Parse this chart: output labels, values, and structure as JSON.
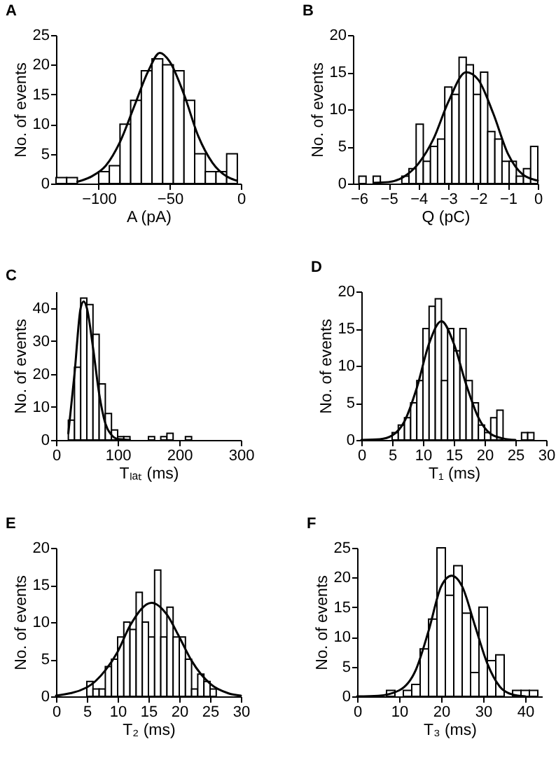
{
  "chart_data": [
    {
      "type": "histogram",
      "title": "A",
      "xlabel": "A (pA)",
      "ylabel": "No. of events",
      "xlim": [
        -130,
        0
      ],
      "xticks": [
        -100,
        -50,
        0
      ],
      "ylim": [
        0,
        25
      ],
      "yticks": [
        0,
        5,
        10,
        15,
        20,
        25
      ],
      "series": [
        {
          "color": "#ffffff",
          "bins": [
            -130,
            -122.5,
            -115,
            -107.5,
            -100,
            -92.5,
            -85,
            -77.5,
            -70,
            -62.5,
            -55,
            -47.5,
            -40,
            -32.5,
            -25,
            -17.5,
            -10,
            -2.5
          ],
          "values": [
            1,
            1,
            0,
            0,
            2,
            3,
            10,
            14,
            19,
            21,
            20,
            19,
            14,
            5,
            2,
            2,
            5
          ]
        },
        {
          "type": "line",
          "color": "#000000",
          "x": [
            -115,
            -105,
            -95,
            -85,
            -75,
            -65,
            -57,
            -50,
            -40,
            -30,
            -20,
            -10,
            -3
          ],
          "values": [
            0.3,
            1.2,
            3,
            7,
            13,
            19,
            22,
            20.5,
            15,
            8,
            3.5,
            1.2,
            0.5
          ]
        }
      ]
    },
    {
      "type": "histogram",
      "title": "B",
      "xlabel": "Q (pC)",
      "ylabel": "No. of events",
      "xlim": [
        -6.2,
        0
      ],
      "xticks": [
        -6,
        -5,
        -4,
        -3,
        -2,
        -1,
        0
      ],
      "ylim": [
        0,
        20
      ],
      "yticks": [
        0,
        5,
        10,
        15,
        20
      ],
      "series": [
        {
          "color": "#ffffff",
          "bins": [
            -6,
            -5.76,
            -5.52,
            -5.28,
            -5.04,
            -4.8,
            -4.56,
            -4.32,
            -4.08,
            -3.84,
            -3.6,
            -3.36,
            -3.12,
            -2.88,
            -2.64,
            -2.4,
            -2.16,
            -1.92,
            -1.68,
            -1.44,
            -1.2,
            -0.96,
            -0.72,
            -0.48,
            -0.24,
            0
          ],
          "values": [
            1,
            0,
            1,
            0,
            0,
            0,
            1,
            2,
            8,
            3,
            5,
            6,
            13,
            12,
            17,
            16,
            12,
            15,
            7,
            6,
            3,
            3,
            1,
            2,
            5
          ]
        },
        {
          "type": "line",
          "color": "#000000",
          "x": [
            -5.5,
            -5,
            -4.5,
            -4,
            -3.5,
            -3,
            -2.4,
            -2,
            -1.5,
            -1,
            -0.5,
            0
          ],
          "values": [
            0.1,
            0.2,
            0.9,
            2.7,
            6,
            11,
            15,
            14,
            9.5,
            4,
            1.2,
            0.4
          ]
        }
      ]
    },
    {
      "type": "histogram",
      "title": "C",
      "xlabel": "Tₗₐₜ (ms)",
      "ylabel": "No. of events",
      "xlim": [
        0,
        300
      ],
      "xticks": [
        0,
        100,
        200,
        300
      ],
      "ylim": [
        0,
        45
      ],
      "yticks": [
        0,
        10,
        20,
        30,
        40
      ],
      "series": [
        {
          "color": "#ffffff",
          "bins": [
            20,
            30,
            40,
            50,
            60,
            70,
            80,
            90,
            100,
            110,
            120,
            130,
            140,
            150,
            160,
            170,
            180,
            190,
            200,
            210,
            220
          ],
          "values": [
            6,
            22,
            43,
            41,
            32,
            17,
            8,
            3,
            1,
            1,
            0,
            0,
            0,
            1,
            0,
            1,
            2,
            0,
            0,
            1
          ]
        },
        {
          "type": "line",
          "color": "#000000",
          "x": [
            20,
            30,
            40,
            45,
            50,
            60,
            70,
            80,
            90,
            100,
            120
          ],
          "values": [
            2,
            20,
            40,
            42,
            40,
            28,
            14,
            5,
            1.5,
            0.3,
            0
          ]
        }
      ]
    },
    {
      "type": "histogram",
      "title": "D",
      "xlabel": "T₁ (ms)",
      "ylabel": "No. of events",
      "xlim": [
        0,
        30
      ],
      "xticks": [
        0,
        5,
        10,
        15,
        20,
        25,
        30
      ],
      "ylim": [
        0,
        20
      ],
      "yticks": [
        0,
        5,
        10,
        15,
        20
      ],
      "series": [
        {
          "color": "#ffffff",
          "bins": [
            5,
            6,
            7,
            8,
            9,
            10,
            11,
            12,
            13,
            14,
            15,
            16,
            17,
            18,
            19,
            20,
            21,
            22,
            23,
            24,
            25,
            26,
            27,
            28
          ],
          "values": [
            1,
            2,
            3,
            5,
            8,
            15,
            18,
            19,
            8,
            15,
            12,
            15,
            8,
            5,
            2,
            1,
            3,
            4,
            0,
            0,
            0,
            1,
            1
          ]
        },
        {
          "type": "line",
          "color": "#000000",
          "x": [
            0,
            3,
            5,
            7,
            9,
            11,
            13,
            15,
            17,
            19,
            21,
            23,
            25
          ],
          "values": [
            0,
            0.1,
            0.6,
            2.5,
            7,
            13,
            16,
            13,
            7.5,
            3,
            0.8,
            0.2,
            0
          ]
        }
      ]
    },
    {
      "type": "histogram",
      "title": "E",
      "xlabel": "T₂ (ms)",
      "ylabel": "No. of events",
      "xlim": [
        0,
        30
      ],
      "xticks": [
        0,
        5,
        10,
        15,
        20,
        25,
        30
      ],
      "ylim": [
        0,
        20
      ],
      "yticks": [
        0,
        5,
        10,
        15,
        20
      ],
      "series": [
        {
          "color": "#ffffff",
          "bins": [
            5,
            6,
            7,
            8,
            9,
            10,
            11,
            12,
            13,
            14,
            15,
            16,
            17,
            18,
            19,
            20,
            21,
            22,
            23,
            24,
            25,
            26
          ],
          "values": [
            2,
            1,
            1,
            4,
            5,
            8,
            10,
            9,
            14,
            10,
            8,
            17,
            8,
            12,
            8,
            8,
            5,
            1,
            3,
            2,
            1
          ]
        },
        {
          "type": "line",
          "color": "#000000",
          "x": [
            0,
            5,
            8,
            10,
            12,
            15.5,
            18,
            20,
            22,
            25,
            28,
            30
          ],
          "values": [
            0.1,
            1.2,
            3.5,
            6,
            9.5,
            12.6,
            11,
            8,
            4.8,
            1.7,
            0.4,
            0.1
          ]
        }
      ]
    },
    {
      "type": "histogram",
      "title": "F",
      "xlabel": "T₃ (ms)",
      "ylabel": "No. of events",
      "xlim": [
        0,
        44
      ],
      "xticks": [
        0,
        10,
        20,
        30,
        40
      ],
      "ylim": [
        0,
        25
      ],
      "yticks": [
        0,
        5,
        10,
        15,
        20,
        25
      ],
      "series": [
        {
          "color": "#ffffff",
          "bins": [
            7,
            9,
            11,
            13,
            15,
            17,
            19,
            21,
            23,
            25,
            27,
            29,
            31,
            33,
            35,
            37,
            39,
            41,
            43
          ],
          "values": [
            1,
            0,
            1,
            2,
            8,
            13,
            25,
            17,
            22,
            14,
            4,
            15,
            6,
            7,
            0,
            1,
            1,
            1
          ]
        },
        {
          "type": "line",
          "color": "#000000",
          "x": [
            0,
            5,
            10,
            14,
            17,
            20,
            22.5,
            25,
            28,
            31,
            34,
            37,
            40
          ],
          "values": [
            0,
            0.1,
            1,
            4.5,
            11,
            18.5,
            20.3,
            18.5,
            12,
            5.5,
            1.6,
            0.3,
            0
          ]
        }
      ]
    }
  ]
}
